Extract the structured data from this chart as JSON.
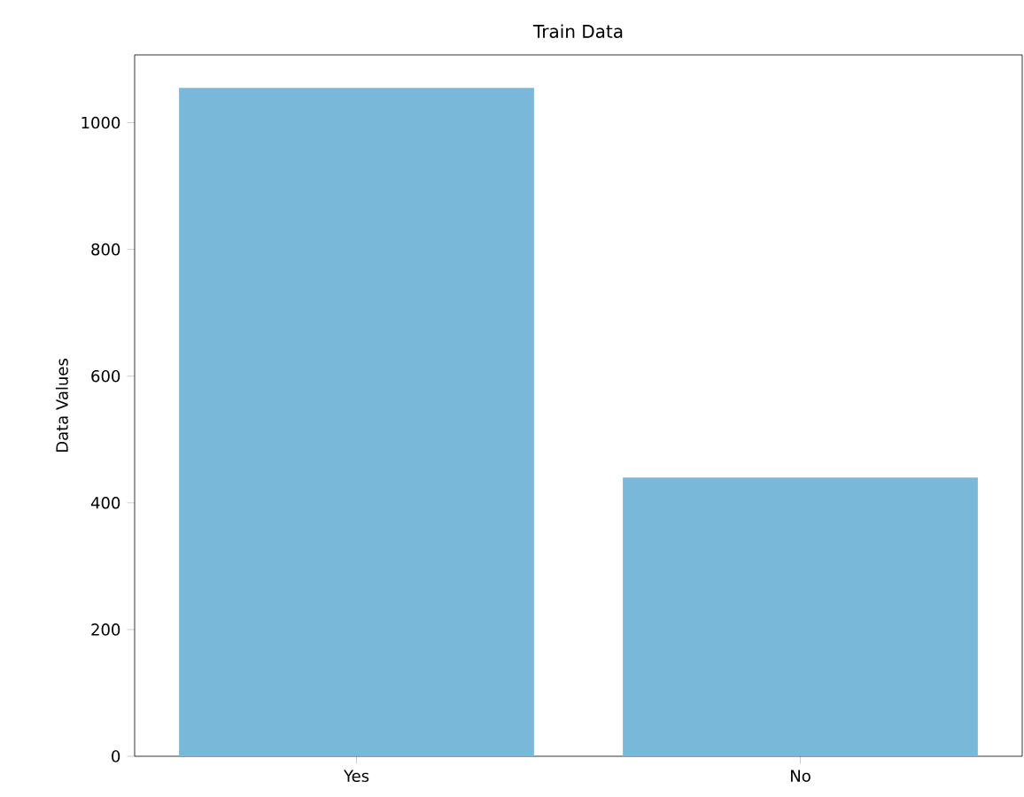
{
  "chart_data": {
    "type": "bar",
    "title": "Train Data",
    "ylabel": "Data Values",
    "categories": [
      "Yes",
      "No"
    ],
    "values": [
      1055,
      440
    ],
    "color": "#7ab8d9",
    "ylim": [
      0,
      1107
    ],
    "yticks": [
      0,
      200,
      400,
      600,
      800,
      1000
    ],
    "grid": false
  }
}
